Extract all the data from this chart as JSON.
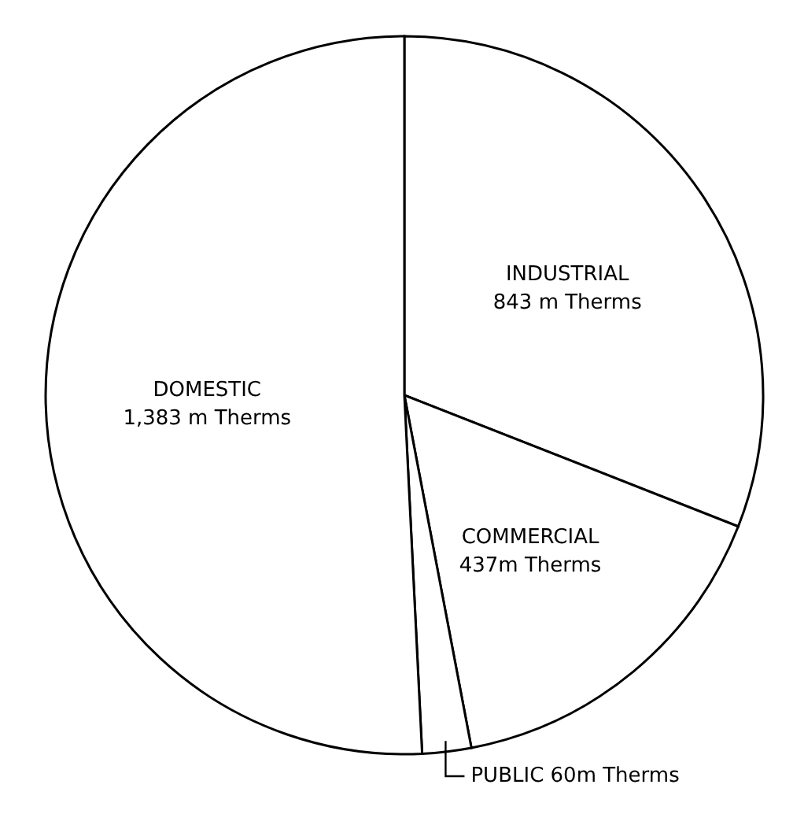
{
  "chart_data": {
    "type": "pie",
    "categories": [
      "INDUSTRIAL",
      "COMMERCIAL",
      "PUBLIC",
      "DOMESTIC"
    ],
    "values": [
      843,
      437,
      60,
      1383
    ],
    "value_labels": [
      "843 m Therms",
      "437m Therms",
      "60m Therms",
      "1,383 m Therms"
    ],
    "colors": [
      "#ffffff",
      "#ffffff",
      "#ffffff",
      "#ffffff"
    ]
  }
}
